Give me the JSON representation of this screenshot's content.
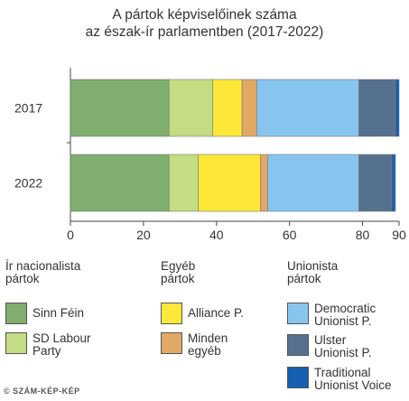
{
  "chart_data": {
    "type": "bar",
    "orientation": "horizontal",
    "stacked": true,
    "title_line1": "A pártok képviselőinek száma",
    "title_line2": "az észak-ír parlamentben (2017-2022)",
    "categories": [
      "2017",
      "2022"
    ],
    "xlim": [
      0,
      90
    ],
    "xticks": [
      "0",
      "20",
      "40",
      "60",
      "80",
      "90"
    ],
    "grid": false,
    "series": [
      {
        "name": "Sinn Féin",
        "color": "#7fae6e",
        "values": [
          27,
          27
        ]
      },
      {
        "name": "SD Labour Party",
        "color": "#c4dc82",
        "values": [
          12,
          8
        ]
      },
      {
        "name": "Alliance P.",
        "color": "#fde83a",
        "values": [
          8,
          17
        ]
      },
      {
        "name": "Minden egyéb",
        "color": "#e2a866",
        "values": [
          4,
          2
        ]
      },
      {
        "name": "Democratic Unionist P.",
        "color": "#88c5ee",
        "values": [
          28,
          25
        ]
      },
      {
        "name": "Ulster Unionist P.",
        "color": "#56718f",
        "values": [
          10,
          9
        ]
      },
      {
        "name": "Traditional Unionist Voice",
        "color": "#1560b0",
        "values": [
          1,
          1
        ]
      }
    ]
  },
  "legend": {
    "groups": [
      {
        "title_line1": "Ír nacionalista",
        "title_line2": "pártok"
      },
      {
        "title_line1": "Egyéb",
        "title_line2": "pártok"
      },
      {
        "title_line1": "Unionista",
        "title_line2": "pártok"
      }
    ],
    "items": [
      {
        "line1": "Sinn Féin",
        "line2": "",
        "color": "#7fae6e"
      },
      {
        "line1": "SD Labour",
        "line2": "Party",
        "color": "#c4dc82"
      },
      {
        "line1": "Alliance P.",
        "line2": "",
        "color": "#fde83a"
      },
      {
        "line1": "Minden",
        "line2": "egyéb",
        "color": "#e2a866"
      },
      {
        "line1": "Democratic",
        "line2": "Unionist P.",
        "color": "#88c5ee"
      },
      {
        "line1": "Ulster",
        "line2": "Unionist P.",
        "color": "#56718f"
      },
      {
        "line1": "Traditional",
        "line2": "Unionist Voice",
        "color": "#1560b0"
      }
    ]
  },
  "credit": "© SZÁM-KÉP-KÉP"
}
